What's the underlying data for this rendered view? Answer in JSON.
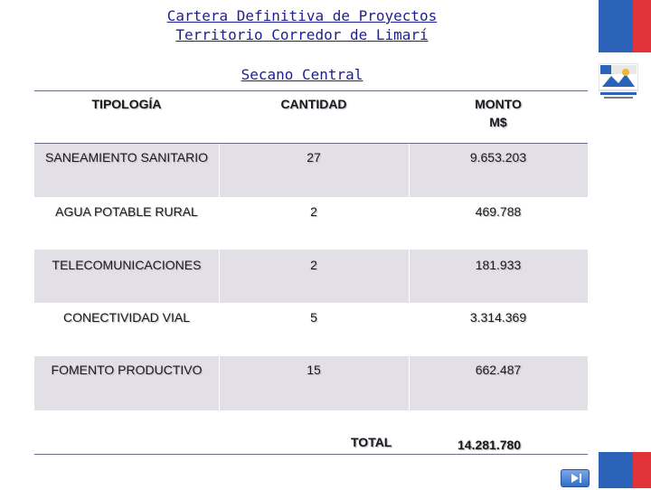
{
  "title_line1": "Cartera Definitiva de Proyectos",
  "title_line2": "Territorio Corredor de Limarí",
  "subtitle": "Secano Central",
  "table": {
    "headers": {
      "tipologia": "TIPOLOGÍA",
      "cantidad": "CANTIDAD",
      "monto_line1": "MONTO",
      "monto_line2": "M$"
    },
    "rows": [
      {
        "tipologia": "SANEAMIENTO SANITARIO",
        "cantidad": "27",
        "monto": "9.653.203"
      },
      {
        "tipologia": "AGUA POTABLE RURAL",
        "cantidad": "2",
        "monto": "469.788"
      },
      {
        "tipologia": "TELECOMUNICACIONES",
        "cantidad": "2",
        "monto": "181.933"
      },
      {
        "tipologia": "CONECTIVIDAD VIAL",
        "cantidad": "5",
        "monto": "3.314.369"
      },
      {
        "tipologia": "FOMENTO PRODUCTIVO",
        "cantidad": "15",
        "monto": "662.487"
      }
    ],
    "total_label": "TOTAL",
    "total_value": "14.281.780"
  },
  "colors": {
    "title": "#1f1f8f",
    "row_shade": "#e3dfe6",
    "flag_blue": "#2a63b8",
    "flag_red": "#e0343a"
  },
  "icons": {
    "logo": "government-logo-icon",
    "nav": "next-slide-icon"
  }
}
